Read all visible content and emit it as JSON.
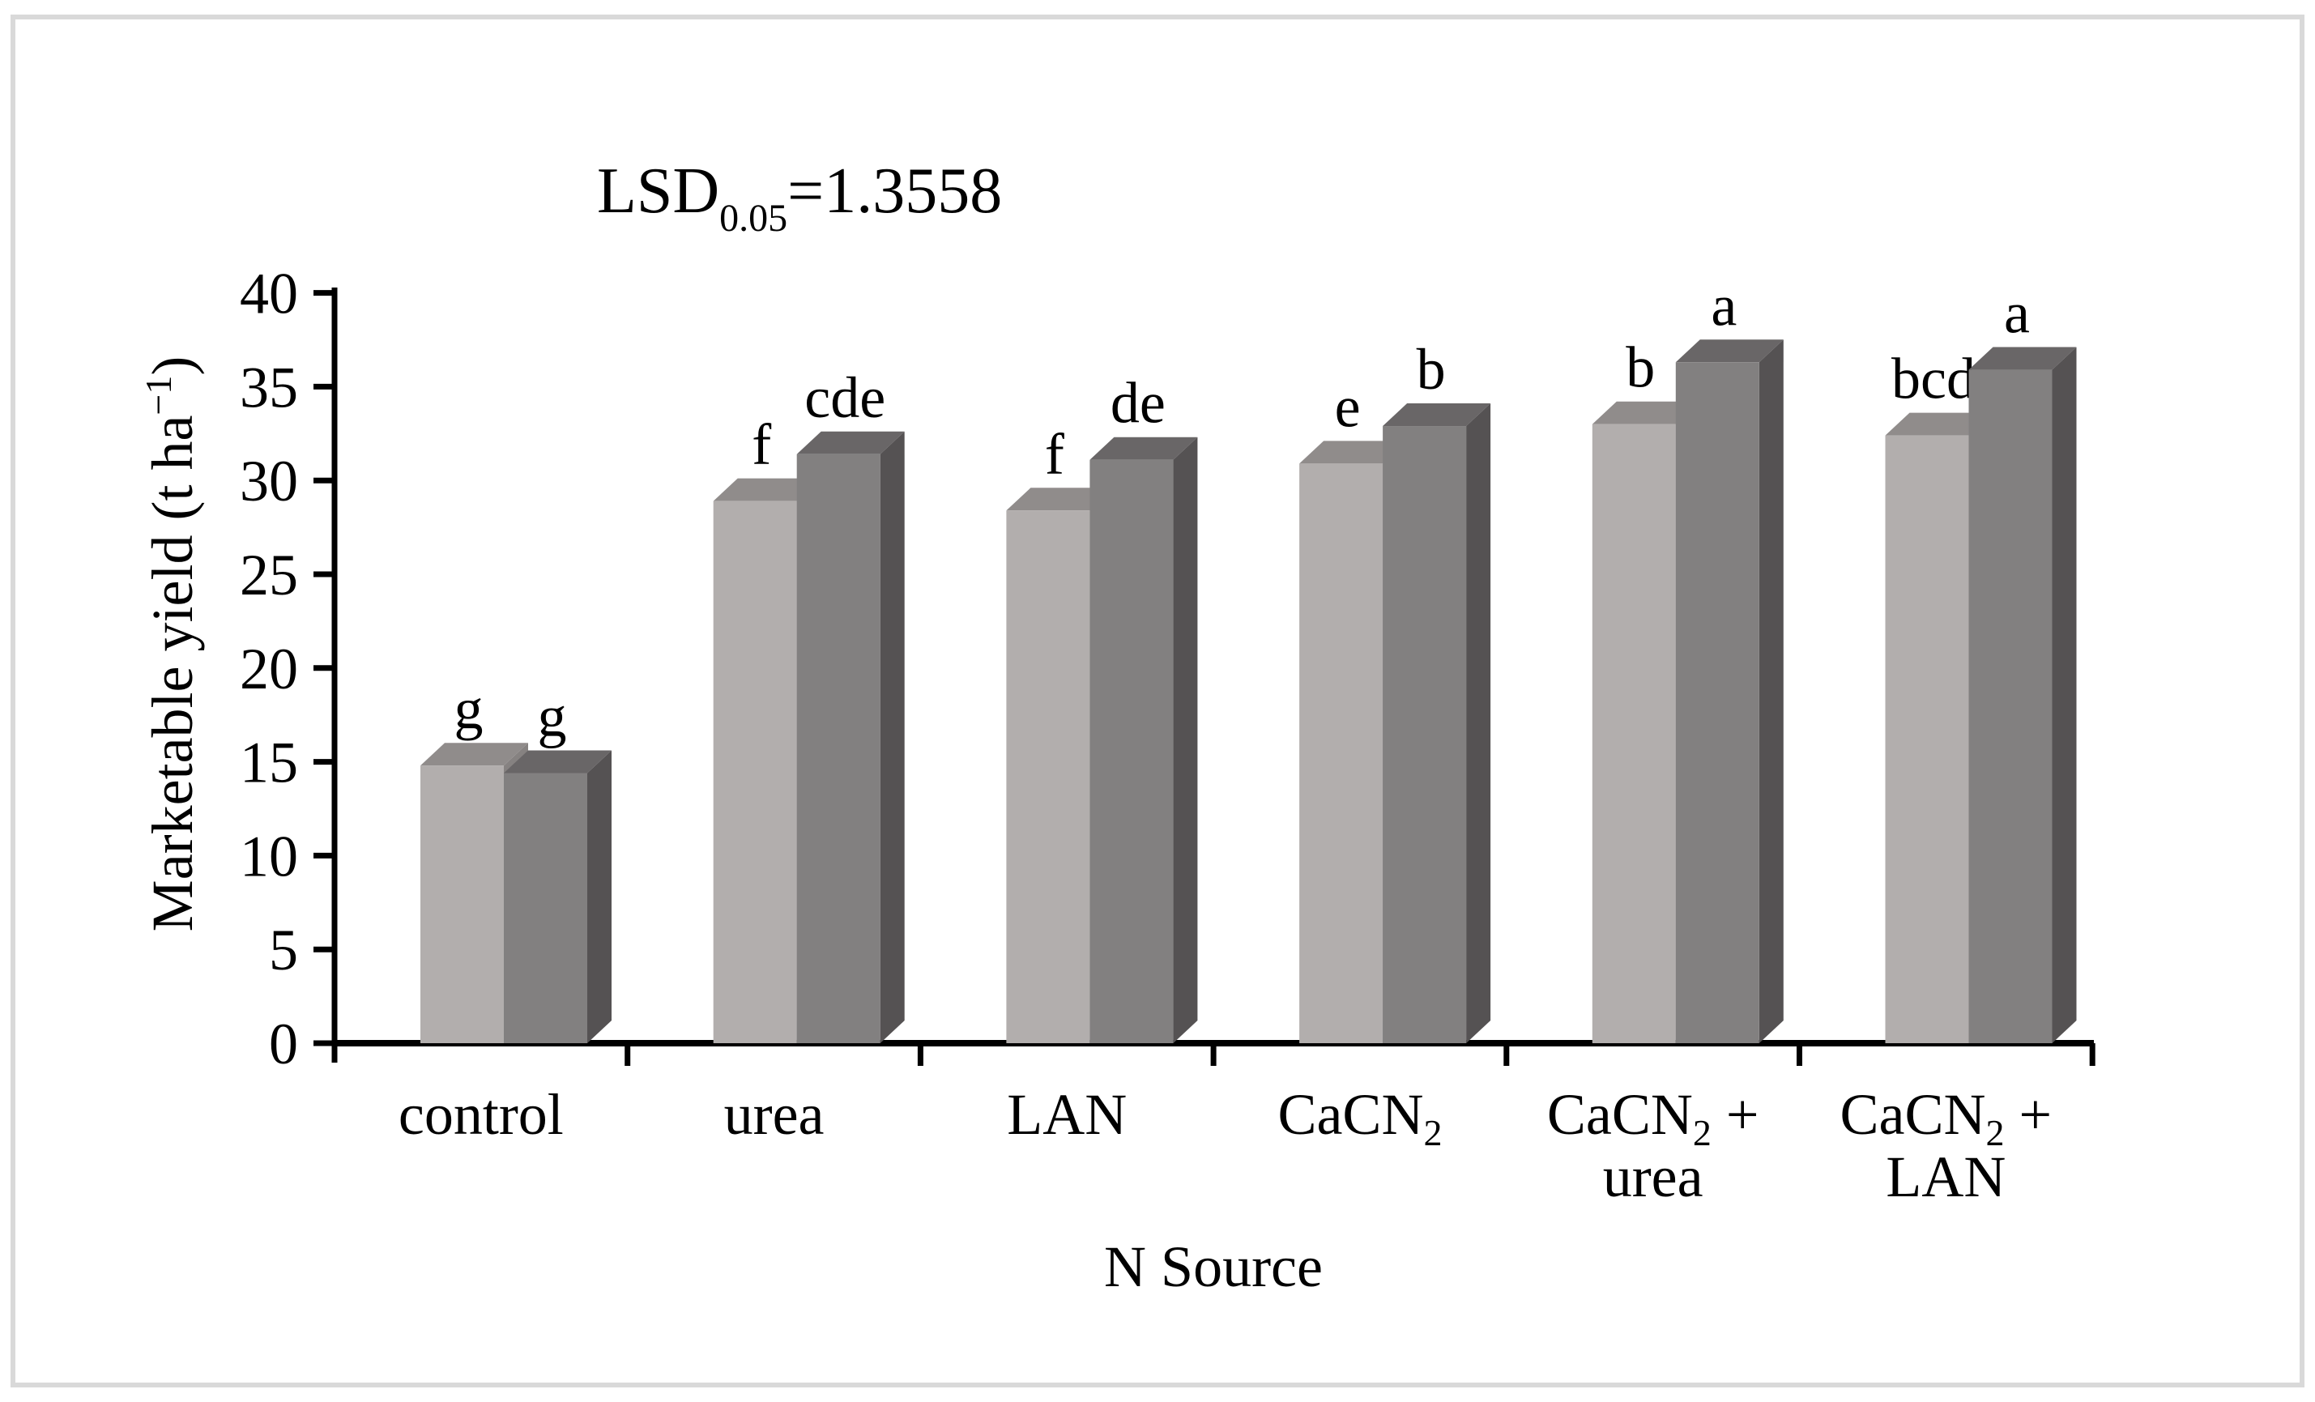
{
  "figure": {
    "border_color": "#d9d9d9",
    "background": "#ffffff"
  },
  "annotation": {
    "base": "LSD",
    "subscript": "0.05",
    "rest": "=1.3558"
  },
  "chart_data": {
    "type": "bar",
    "style": "3d-clustered",
    "title": "LSD0.05=1.3558",
    "xlabel": "N Source",
    "ylabel": "Marketable yield (t ha⁻¹)",
    "ylim": [
      0,
      40
    ],
    "ytick_step": 5,
    "grid": false,
    "legend": "none",
    "categories": [
      "control",
      "urea",
      "LAN",
      "CaCN₂",
      "CaCN₂ + urea",
      "CaCN₂ + LAN"
    ],
    "category_label_lines": [
      [
        "control"
      ],
      [
        "urea"
      ],
      [
        "LAN"
      ],
      [
        "CaCN₂"
      ],
      [
        "CaCN₂ +",
        "urea"
      ],
      [
        "CaCN₂ +",
        "LAN"
      ]
    ],
    "series": [
      {
        "name": "series-1-light",
        "values": [
          14.8,
          28.9,
          28.4,
          30.9,
          33.0,
          32.4
        ],
        "letters": [
          "g",
          "f",
          "f",
          "e",
          "b",
          "bcd"
        ],
        "color_front": "#b2aead",
        "color_top": "#908c8b",
        "color_side": "#868281"
      },
      {
        "name": "series-2-dark",
        "values": [
          14.4,
          31.4,
          31.1,
          32.9,
          36.3,
          35.9
        ],
        "letters": [
          "g",
          "cde",
          "de",
          "b",
          "a",
          "a"
        ],
        "color_front": "#828080",
        "color_top": "#696667",
        "color_side": "#555253"
      }
    ],
    "axis_color": "#000000",
    "text_color": "#000000"
  }
}
